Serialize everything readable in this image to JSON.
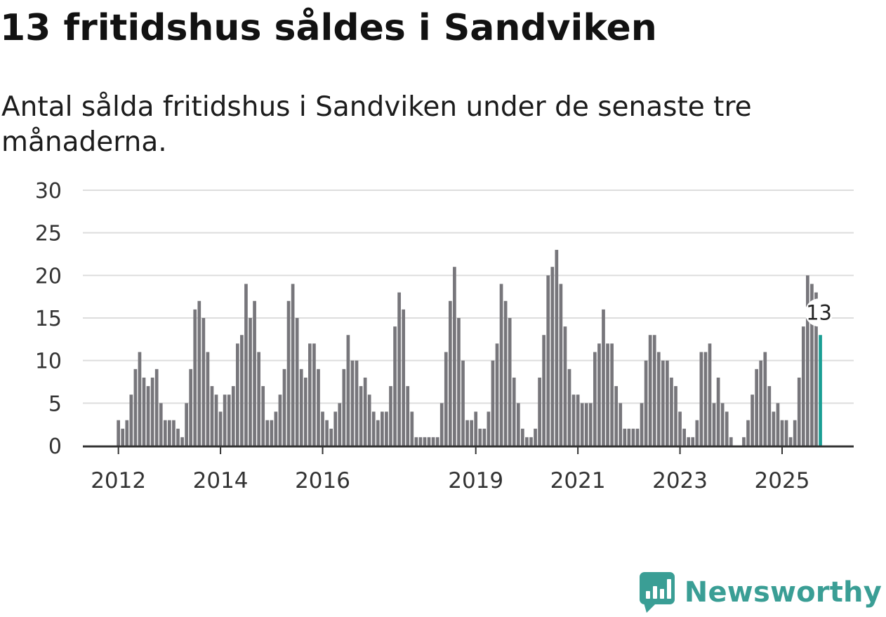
{
  "title": "13 fritidshus såldes i Sandviken",
  "subtitle": "Antal sålda fritidshus i Sandviken under de senaste tre månaderna.",
  "brand": {
    "name": "Newsworthy",
    "logo_icon": "bar-chart-speech-bubble-icon",
    "color": "#3a9e95"
  },
  "colors": {
    "bar": "#77767b",
    "highlight": "#1a9e94",
    "grid": "#dddddd",
    "axis": "#333333"
  },
  "chart_data": {
    "type": "bar",
    "title": "13 fritidshus såldes i Sandviken",
    "xlabel": "",
    "ylabel": "",
    "ylim": [
      0,
      30
    ],
    "yticks": [
      0,
      5,
      10,
      15,
      20,
      25,
      30
    ],
    "grid": true,
    "start": "2012-01",
    "xtick_labels": [
      {
        "label": "2012",
        "index": 0
      },
      {
        "label": "2014",
        "index": 24
      },
      {
        "label": "2016",
        "index": 48
      },
      {
        "label": "2019",
        "index": 84
      },
      {
        "label": "2021",
        "index": 108
      },
      {
        "label": "2023",
        "index": 132
      },
      {
        "label": "2025",
        "index": 156
      }
    ],
    "highlight_index": 165,
    "annotation": {
      "label": "13",
      "index": 165
    },
    "values": [
      3,
      2,
      3,
      6,
      9,
      11,
      8,
      7,
      8,
      9,
      5,
      3,
      3,
      3,
      2,
      1,
      5,
      9,
      16,
      17,
      15,
      11,
      7,
      6,
      4,
      6,
      6,
      7,
      12,
      13,
      19,
      15,
      17,
      11,
      7,
      3,
      3,
      4,
      6,
      9,
      17,
      19,
      15,
      9,
      8,
      12,
      12,
      9,
      4,
      3,
      2,
      4,
      5,
      9,
      13,
      10,
      10,
      7,
      8,
      6,
      4,
      3,
      4,
      4,
      7,
      14,
      18,
      16,
      7,
      4,
      1,
      1,
      1,
      1,
      1,
      1,
      5,
      11,
      17,
      21,
      15,
      10,
      3,
      3,
      4,
      2,
      2,
      4,
      10,
      12,
      19,
      17,
      15,
      8,
      5,
      2,
      1,
      1,
      2,
      8,
      13,
      20,
      21,
      23,
      19,
      14,
      9,
      6,
      6,
      5,
      5,
      5,
      11,
      12,
      16,
      12,
      12,
      7,
      5,
      2,
      2,
      2,
      2,
      5,
      10,
      13,
      13,
      11,
      10,
      10,
      8,
      7,
      4,
      2,
      1,
      1,
      3,
      11,
      11,
      12,
      5,
      8,
      5,
      4,
      1,
      0,
      0,
      1,
      3,
      6,
      9,
      10,
      11,
      7,
      4,
      5,
      3,
      3,
      1,
      3,
      8,
      14,
      20,
      19,
      18,
      13
    ]
  }
}
